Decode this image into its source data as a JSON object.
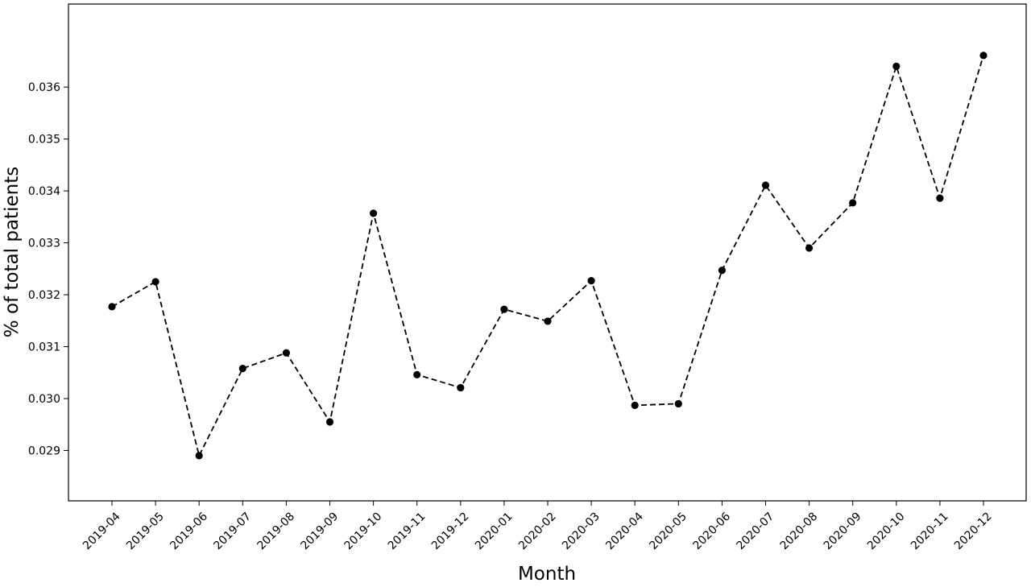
{
  "chart_data": {
    "type": "line",
    "title": "",
    "xlabel": "Month",
    "ylabel": "% of total patients",
    "categories": [
      "2019-04",
      "2019-05",
      "2019-06",
      "2019-07",
      "2019-08",
      "2019-09",
      "2019-10",
      "2019-11",
      "2019-12",
      "2020-01",
      "2020-02",
      "2020-03",
      "2020-04",
      "2020-05",
      "2020-06",
      "2020-07",
      "2020-08",
      "2020-09",
      "2020-10",
      "2020-11",
      "2020-12"
    ],
    "series": [
      {
        "values": [
          0.03177,
          0.03225,
          0.0289,
          0.03058,
          0.03088,
          0.02955,
          0.03357,
          0.03046,
          0.03021,
          0.03172,
          0.03149,
          0.03227,
          0.02987,
          0.0299,
          0.03247,
          0.03411,
          0.0329,
          0.03377,
          0.0364,
          0.03386,
          0.03661
        ],
        "color": "#000000",
        "line_style": "dashed",
        "marker": "circle"
      }
    ],
    "yticks": [
      "0.029",
      "0.030",
      "0.031",
      "0.032",
      "0.033",
      "0.034",
      "0.035",
      "0.036"
    ],
    "ytick_values": [
      0.029,
      0.03,
      0.031,
      0.032,
      0.033,
      0.034,
      0.035,
      0.036
    ],
    "ylim": [
      0.02803,
      0.0376
    ],
    "grid": false,
    "legend": "none"
  }
}
